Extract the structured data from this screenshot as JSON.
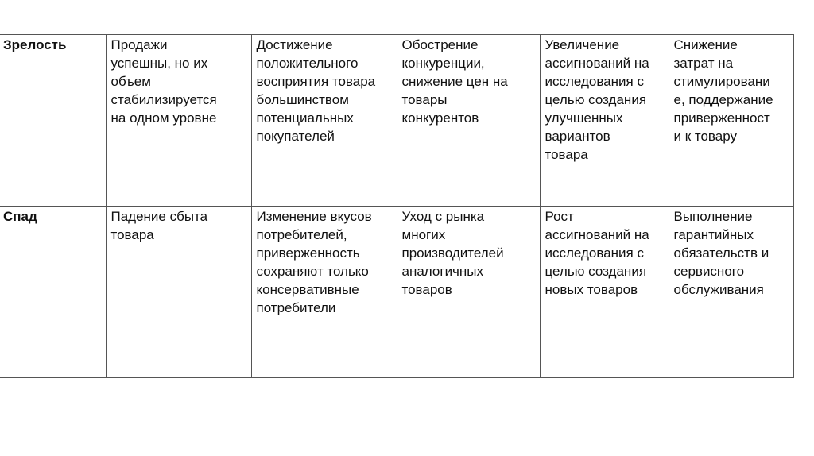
{
  "rows": [
    {
      "stage": "Зрелость",
      "cells": [
        "Продажи\nуспешны, но их\nобъем\nстабилизируется\nна одном уровне",
        "Достижение\nположительного\nвосприятия товара\nбольшинством\nпотенциальных\nпокупателей",
        " Обострение\nконкуренции,\nснижение цен на\nтовары\nконкурентов",
        "Увеличение\nассигнований на\nисследования с\nцелью создания\nулучшенных\nвариантов\nтовара",
        "Снижение\nзатрат на\nстимулировани\nе, поддержание\nприверженност\nи к товару"
      ]
    },
    {
      "stage": "Спад",
      "cells": [
        "Падение сбыта\nтовара",
        "Изменение вкусов\nпотребителей,\nприверженность\nсохраняют только\nконсервативные\nпотребители",
        "Уход с рынка\nмногих\nпроизводителей\nаналогичных\nтоваров",
        "Рост\nассигнований на\nисследования с\nцелью создания\nновых товаров",
        "Выполнение\nгарантийных\nобязательств и\nсервисного\nобслуживания"
      ]
    }
  ]
}
